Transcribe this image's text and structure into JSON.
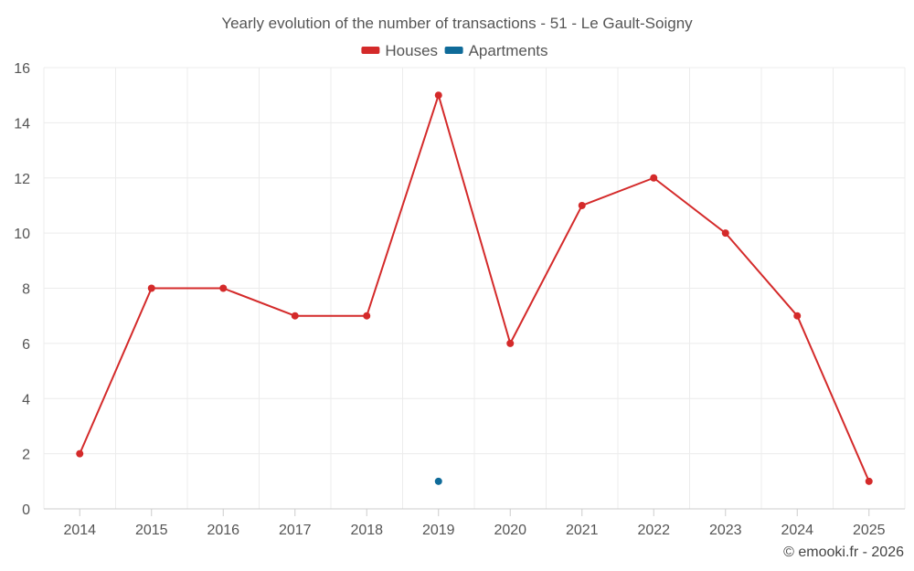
{
  "chart_data": {
    "type": "line",
    "title": "Yearly evolution of the number of transactions - 51 - Le Gault-Soigny",
    "categories": [
      "2014",
      "2015",
      "2016",
      "2017",
      "2018",
      "2019",
      "2020",
      "2021",
      "2022",
      "2023",
      "2024",
      "2025"
    ],
    "series": [
      {
        "name": "Houses",
        "color": "#d42a2a",
        "values": [
          2,
          8,
          8,
          7,
          7,
          15,
          6,
          11,
          12,
          10,
          7,
          1
        ]
      },
      {
        "name": "Apartments",
        "color": "#0f6b99",
        "values": [
          null,
          null,
          null,
          null,
          null,
          1,
          null,
          null,
          null,
          null,
          null,
          null
        ]
      }
    ],
    "ylim": [
      0,
      16
    ],
    "yticks": [
      0,
      2,
      4,
      6,
      8,
      10,
      12,
      14,
      16
    ],
    "xlabel": "",
    "ylabel": "",
    "grid": true,
    "legend": "top-center"
  },
  "credit": "© emooki.fr - 2026"
}
